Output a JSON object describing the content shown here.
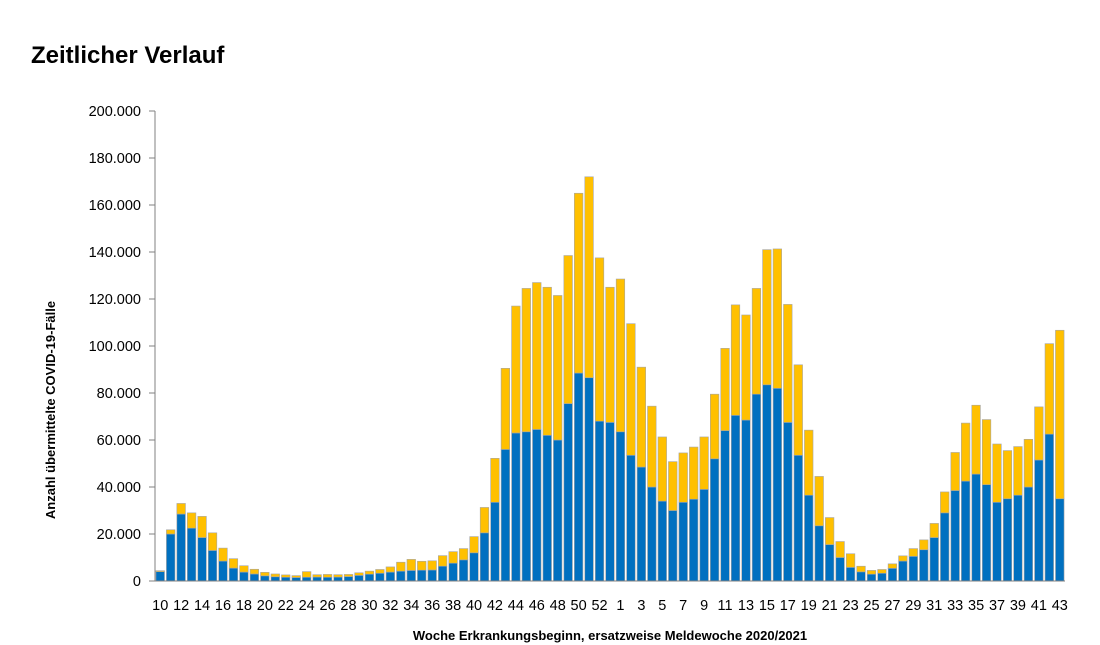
{
  "page": {
    "title": "Zeitlicher Verlauf"
  },
  "colors": {
    "series_lower": "#0070c0",
    "series_upper": "#ffc000",
    "axis": "#808080",
    "bar_stroke": "#a6a6a6"
  },
  "chart_data": {
    "type": "bar",
    "stacked": true,
    "title": "",
    "xlabel": "Woche Erkrankungsbeginn,  ersatzweise Meldewoche 2020/2021",
    "ylabel": "Anzahl übermittelte COVID-19-Fälle",
    "ylim": [
      0,
      200000
    ],
    "yticks": [
      0,
      20000,
      40000,
      60000,
      80000,
      100000,
      120000,
      140000,
      160000,
      180000,
      200000
    ],
    "ytick_labels": [
      "0",
      "20.000",
      "40.000",
      "60.000",
      "80.000",
      "100.000",
      "120.000",
      "140.000",
      "160.000",
      "180.000",
      "200.000"
    ],
    "grid": false,
    "legend": "none",
    "categories": [
      "10",
      "11",
      "12",
      "13",
      "14",
      "15",
      "16",
      "17",
      "18",
      "19",
      "20",
      "21",
      "22",
      "23",
      "24",
      "25",
      "26",
      "27",
      "28",
      "29",
      "30",
      "31",
      "32",
      "33",
      "34",
      "35",
      "36",
      "37",
      "38",
      "39",
      "40",
      "41",
      "42",
      "43",
      "44",
      "45",
      "46",
      "47",
      "48",
      "49",
      "50",
      "51",
      "52",
      "53",
      "1",
      "2",
      "3",
      "4",
      "5",
      "6",
      "7",
      "8",
      "9",
      "10",
      "11",
      "12",
      "13",
      "14",
      "15",
      "16",
      "17",
      "18",
      "19",
      "20",
      "21",
      "22",
      "23",
      "24",
      "25",
      "26",
      "27",
      "28",
      "29",
      "30",
      "31",
      "32",
      "33",
      "34",
      "35",
      "36",
      "37",
      "38",
      "39",
      "40",
      "41",
      "42",
      "43"
    ],
    "x_tick_labels": [
      {
        "index": 0,
        "label": "10"
      },
      {
        "index": 2,
        "label": "12"
      },
      {
        "index": 4,
        "label": "14"
      },
      {
        "index": 6,
        "label": "16"
      },
      {
        "index": 8,
        "label": "18"
      },
      {
        "index": 10,
        "label": "20"
      },
      {
        "index": 12,
        "label": "22"
      },
      {
        "index": 14,
        "label": "24"
      },
      {
        "index": 16,
        "label": "26"
      },
      {
        "index": 18,
        "label": "28"
      },
      {
        "index": 20,
        "label": "30"
      },
      {
        "index": 22,
        "label": "32"
      },
      {
        "index": 24,
        "label": "34"
      },
      {
        "index": 26,
        "label": "36"
      },
      {
        "index": 28,
        "label": "38"
      },
      {
        "index": 30,
        "label": "40"
      },
      {
        "index": 32,
        "label": "42"
      },
      {
        "index": 34,
        "label": "44"
      },
      {
        "index": 36,
        "label": "46"
      },
      {
        "index": 38,
        "label": "48"
      },
      {
        "index": 40,
        "label": "50"
      },
      {
        "index": 42,
        "label": "52"
      },
      {
        "index": 44,
        "label": "1"
      },
      {
        "index": 46,
        "label": "3"
      },
      {
        "index": 48,
        "label": "5"
      },
      {
        "index": 50,
        "label": "7"
      },
      {
        "index": 52,
        "label": "9"
      },
      {
        "index": 54,
        "label": "11"
      },
      {
        "index": 56,
        "label": "13"
      },
      {
        "index": 58,
        "label": "15"
      },
      {
        "index": 60,
        "label": "17"
      },
      {
        "index": 62,
        "label": "19"
      },
      {
        "index": 64,
        "label": "21"
      },
      {
        "index": 66,
        "label": "23"
      },
      {
        "index": 68,
        "label": "25"
      },
      {
        "index": 70,
        "label": "27"
      },
      {
        "index": 72,
        "label": "29"
      },
      {
        "index": 74,
        "label": "31"
      },
      {
        "index": 76,
        "label": "33"
      },
      {
        "index": 78,
        "label": "35"
      },
      {
        "index": 80,
        "label": "37"
      },
      {
        "index": 82,
        "label": "39"
      },
      {
        "index": 84,
        "label": "41"
      },
      {
        "index": 86,
        "label": "43"
      }
    ],
    "series": [
      {
        "color": "#0070c0",
        "values": [
          4000,
          20000,
          28500,
          22500,
          18500,
          13000,
          8500,
          5500,
          3800,
          3000,
          2200,
          1800,
          1600,
          1500,
          1600,
          1700,
          1600,
          1700,
          1900,
          2400,
          2900,
          3300,
          3800,
          4200,
          4500,
          4600,
          4700,
          6300,
          7600,
          9000,
          12000,
          20500,
          33500,
          56000,
          63000,
          63500,
          64500,
          62000,
          60000,
          75500,
          88500,
          86500,
          68000,
          67500,
          63500,
          53500,
          48500,
          40000,
          34000,
          30000,
          33500,
          34800,
          39000,
          52000,
          64000,
          70500,
          68500,
          79500,
          83500,
          82000,
          67500,
          53500,
          36500,
          23500,
          15500,
          10000,
          5800,
          3900,
          2900,
          3300,
          5400,
          8500,
          10500,
          13300,
          18500,
          29000,
          38500,
          42500,
          45500,
          41000,
          33500,
          35000,
          36500,
          40000,
          51500,
          62500,
          35000
        ]
      },
      {
        "color": "#ffc000",
        "values": [
          400,
          1800,
          4500,
          6500,
          9000,
          7500,
          5500,
          4000,
          2700,
          2000,
          1500,
          1200,
          1000,
          800,
          2400,
          1000,
          1200,
          1000,
          900,
          1100,
          1300,
          1600,
          2200,
          3800,
          4700,
          3800,
          3900,
          4500,
          4900,
          4800,
          6900,
          10800,
          18700,
          34500,
          54000,
          61000,
          62500,
          63000,
          61500,
          63000,
          76500,
          85500,
          69500,
          57500,
          65000,
          56000,
          42500,
          34400,
          27300,
          20800,
          21000,
          22200,
          22300,
          27500,
          35000,
          47000,
          44700,
          45000,
          57500,
          59300,
          50200,
          38500,
          27700,
          21000,
          11500,
          6800,
          5800,
          2400,
          1600,
          1600,
          1900,
          2200,
          3300,
          4200,
          6000,
          8900,
          16200,
          24700,
          29300,
          27700,
          24800,
          20500,
          20700,
          20300,
          22600,
          38500,
          71700
        ]
      }
    ]
  }
}
